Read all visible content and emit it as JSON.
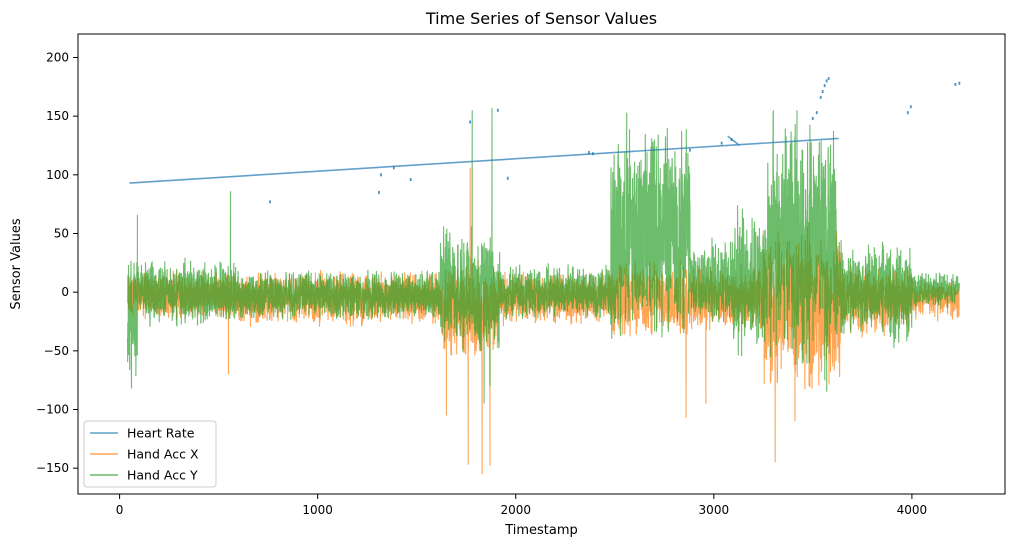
{
  "chart_data": {
    "type": "line",
    "title": "Time Series of Sensor Values",
    "xlabel": "Timestamp",
    "ylabel": "Sensor Values",
    "xlim": [
      -210,
      4470
    ],
    "ylim": [
      -172,
      220
    ],
    "xticks": [
      0,
      1000,
      2000,
      3000,
      4000
    ],
    "yticks": [
      -150,
      -100,
      -50,
      0,
      50,
      100,
      150,
      200
    ],
    "grid": false,
    "legend_position": "lower-left",
    "series": [
      {
        "name": "Heart Rate",
        "color": "#1f77b4",
        "line_segments": [
          [
            [
              50,
              93
            ],
            [
              3630,
              131
            ]
          ],
          [
            [
              3070,
              133
            ],
            [
              3130,
              125
            ]
          ]
        ],
        "scatter_points": [
          [
            760,
            77
          ],
          [
            1310,
            85
          ],
          [
            1320,
            100
          ],
          [
            1385,
            106
          ],
          [
            1470,
            96
          ],
          [
            1770,
            145
          ],
          [
            1910,
            155
          ],
          [
            1960,
            97
          ],
          [
            2370,
            119
          ],
          [
            2390,
            118
          ],
          [
            2880,
            121
          ],
          [
            3040,
            127
          ],
          [
            3090,
            130
          ],
          [
            3500,
            148
          ],
          [
            3520,
            153
          ],
          [
            3540,
            166
          ],
          [
            3550,
            171
          ],
          [
            3560,
            176
          ],
          [
            3570,
            180
          ],
          [
            3580,
            182
          ],
          [
            3980,
            153
          ],
          [
            3995,
            158
          ],
          [
            4220,
            177
          ],
          [
            4240,
            178
          ]
        ]
      },
      {
        "name": "Hand Acc X",
        "color": "#ff7f0e",
        "bursts": [
          [
            40,
            600,
            -25,
            20
          ],
          [
            600,
            1620,
            -30,
            20
          ],
          [
            1620,
            1920,
            -60,
            30
          ],
          [
            1920,
            2480,
            -30,
            20
          ],
          [
            2480,
            2880,
            -40,
            30
          ],
          [
            2880,
            3100,
            -35,
            25
          ],
          [
            3100,
            3250,
            -40,
            25
          ],
          [
            3250,
            3640,
            -90,
            60
          ],
          [
            3640,
            3880,
            -40,
            25
          ],
          [
            3880,
            4000,
            -35,
            25
          ],
          [
            4000,
            4240,
            -25,
            15
          ]
        ],
        "spikes": [
          [
            550,
            -70
          ],
          [
            1650,
            -105
          ],
          [
            1760,
            -147
          ],
          [
            1770,
            106
          ],
          [
            1830,
            -155
          ],
          [
            1870,
            -148
          ],
          [
            2860,
            -107
          ],
          [
            2960,
            -95
          ],
          [
            3310,
            -145
          ],
          [
            3410,
            -110
          ],
          [
            4130,
            -25
          ]
        ]
      },
      {
        "name": "Hand Acc Y",
        "color": "#2ca02c",
        "bursts": [
          [
            40,
            90,
            -80,
            40
          ],
          [
            90,
            600,
            -30,
            30
          ],
          [
            600,
            1620,
            -25,
            20
          ],
          [
            1620,
            1920,
            -60,
            60
          ],
          [
            1920,
            2480,
            -25,
            25
          ],
          [
            2480,
            2880,
            -45,
            150
          ],
          [
            2880,
            3100,
            -30,
            50
          ],
          [
            3100,
            3270,
            -60,
            80
          ],
          [
            3270,
            3620,
            -80,
            155
          ],
          [
            3620,
            3880,
            -40,
            45
          ],
          [
            3880,
            4000,
            -50,
            45
          ],
          [
            4000,
            4240,
            -15,
            20
          ]
        ],
        "spikes": [
          [
            60,
            -82
          ],
          [
            90,
            66
          ],
          [
            560,
            86
          ],
          [
            1780,
            155
          ],
          [
            1840,
            -95
          ],
          [
            1880,
            157
          ],
          [
            1870,
            -80
          ],
          [
            2560,
            153
          ],
          [
            2700,
            130
          ],
          [
            3300,
            155
          ],
          [
            3420,
            155
          ],
          [
            3560,
            -75
          ],
          [
            3570,
            -85
          ]
        ]
      }
    ]
  }
}
